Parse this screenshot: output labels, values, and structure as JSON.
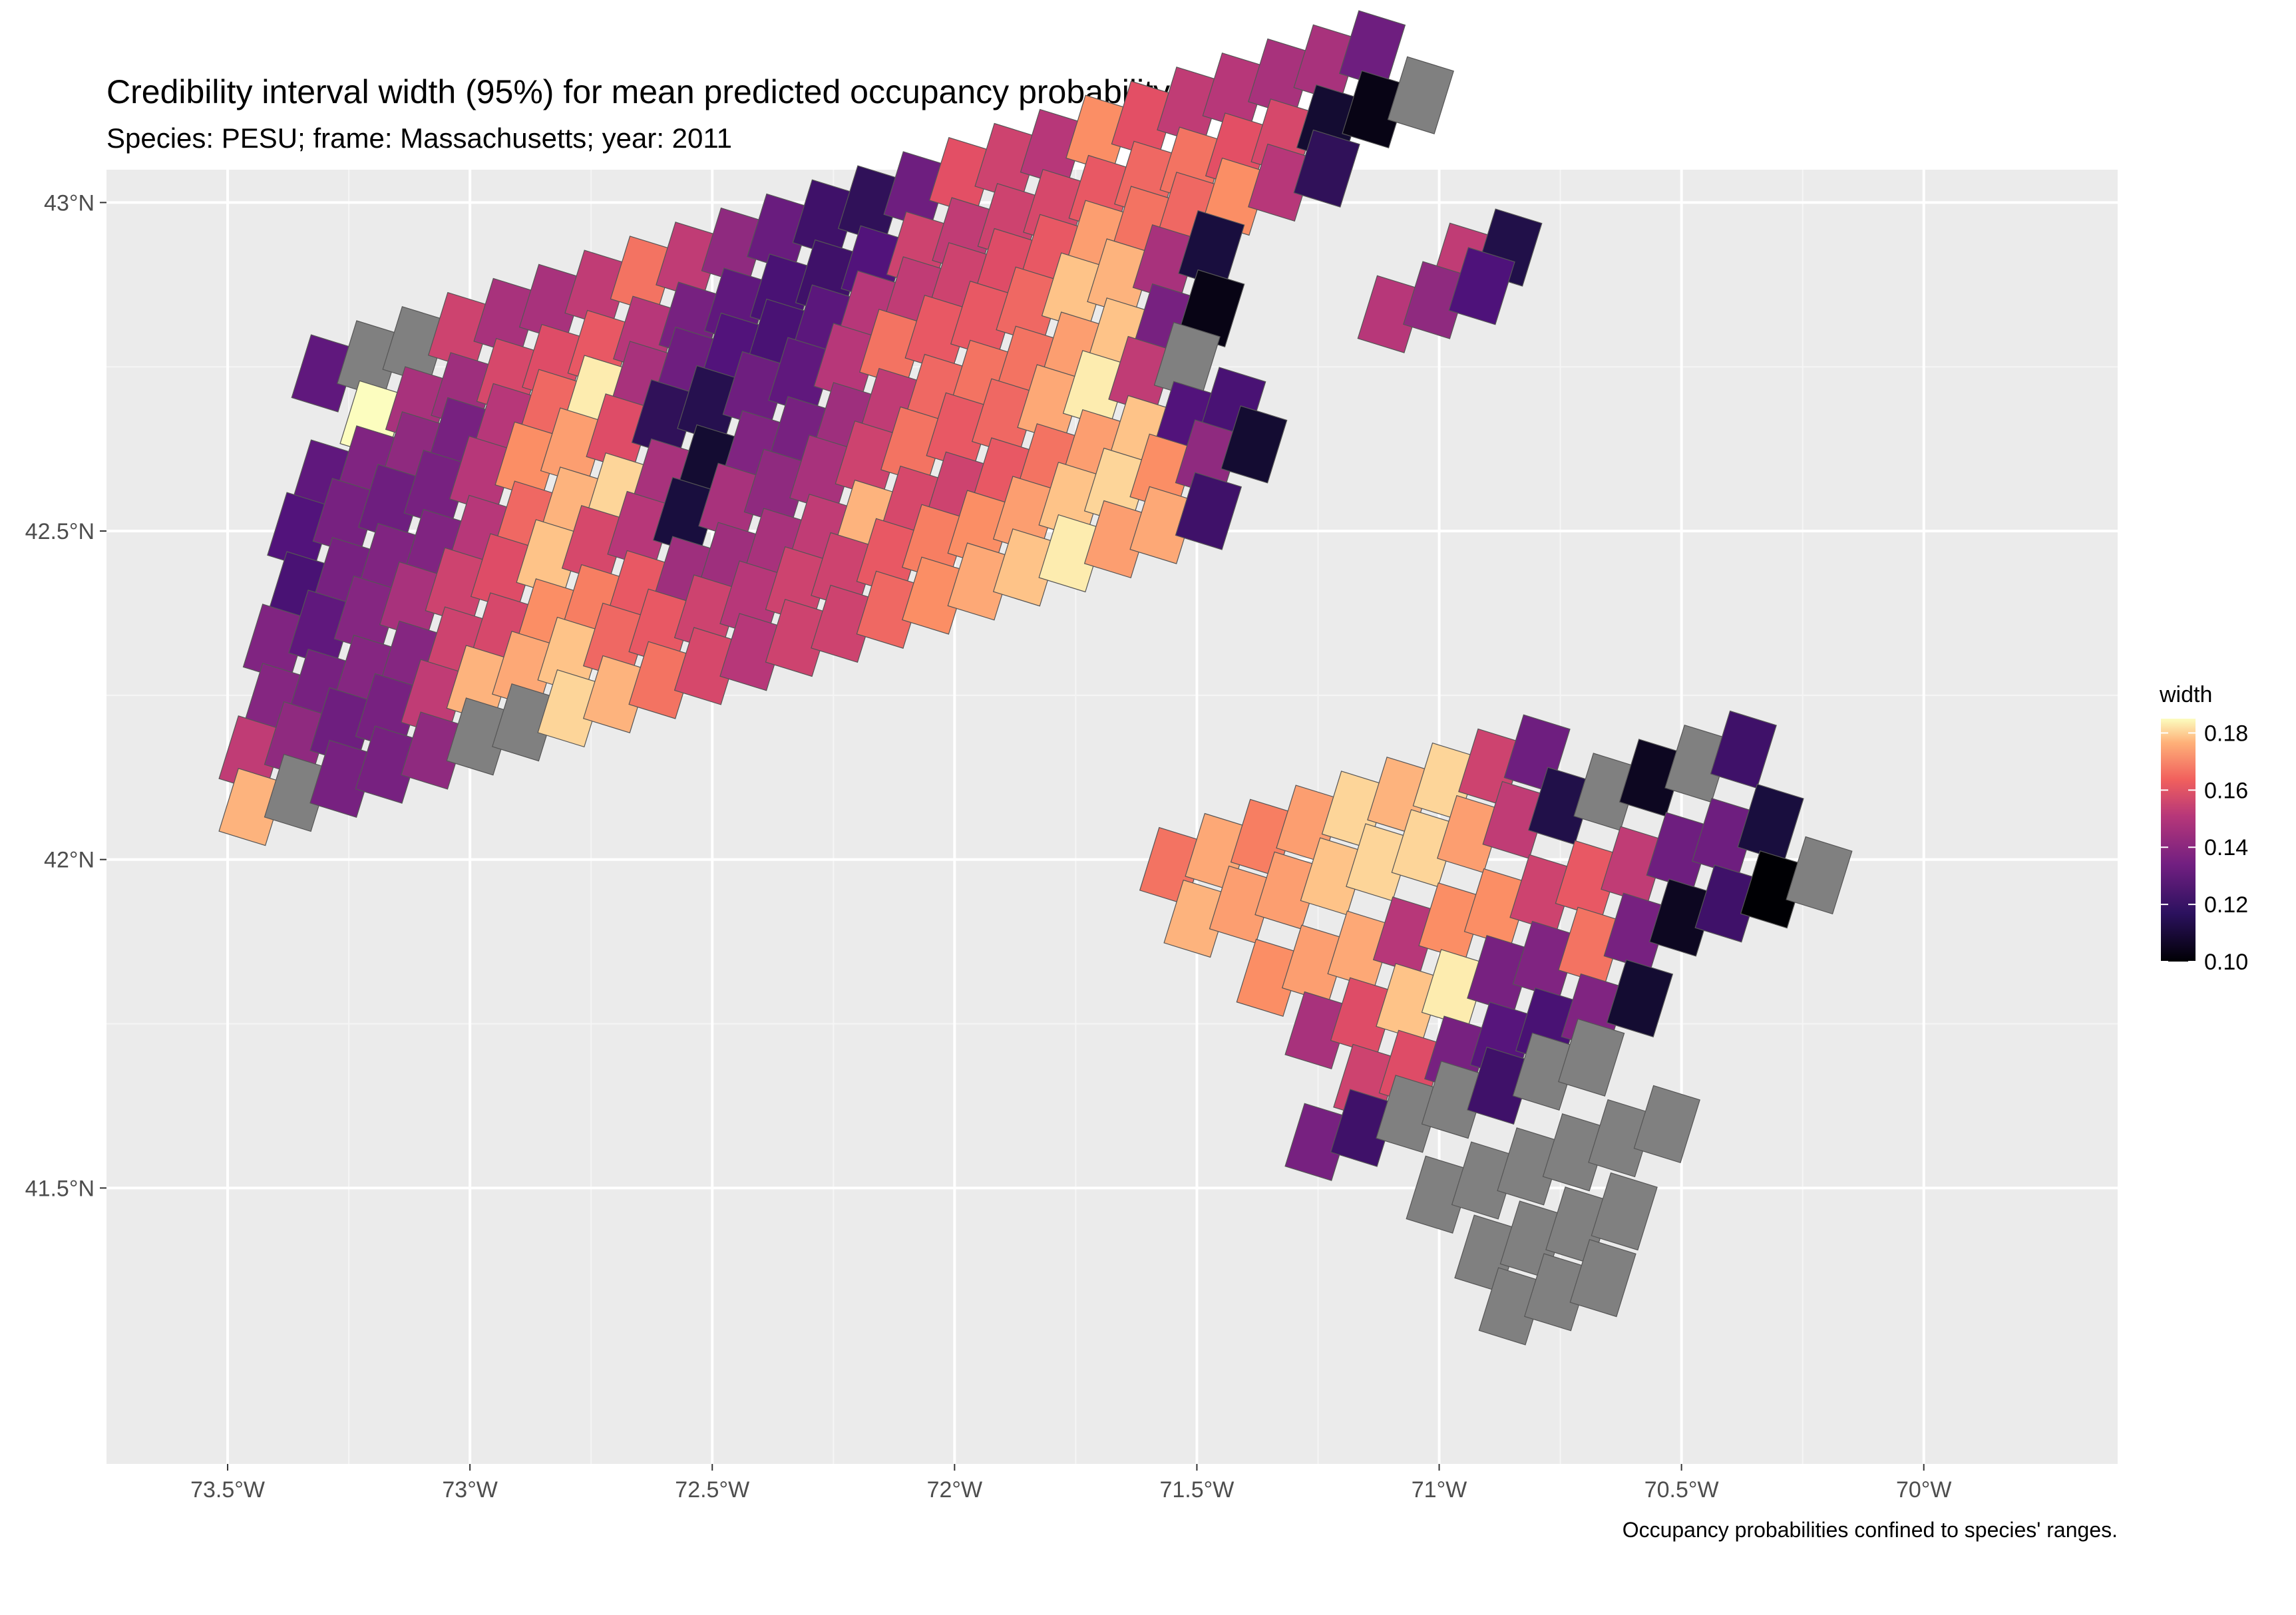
{
  "title": "Credibility interval width (95%) for mean predicted occupancy probability",
  "subtitle": "Species: PESU; frame: Massachusetts; year: 2011",
  "caption": "Occupancy probabilities confined to species' ranges.",
  "colors": {
    "panel_background": "#ebebeb",
    "grid": "#ffffff",
    "no_data_tile": "#808080",
    "tile_outline": "#555555",
    "palette": "magma"
  },
  "chart_data": {
    "type": "heatmap",
    "x_ticks": [
      "73.5°W",
      "73°W",
      "72.5°W",
      "72°W",
      "71.5°W",
      "71°W",
      "70.5°W",
      "70°W"
    ],
    "x_tick_values": [
      -73.5,
      -73.0,
      -72.5,
      -72.0,
      -71.5,
      -71.0,
      -70.5,
      -70.0
    ],
    "y_ticks": [
      "43°N",
      "42.5°N",
      "42°N",
      "41.5°N"
    ],
    "y_tick_values": [
      43.0,
      42.5,
      42.0,
      41.5
    ],
    "xlim": [
      -73.75,
      -69.6
    ],
    "ylim": [
      41.08,
      43.05
    ],
    "grid": true,
    "legend": {
      "title": "width",
      "position": "right",
      "range": [
        0.1,
        0.185
      ],
      "labels": [
        "0.18",
        "0.16",
        "0.14",
        "0.12",
        "0.10"
      ],
      "label_values": [
        0.18,
        0.16,
        0.14,
        0.12,
        0.1
      ]
    },
    "cell_size_deg": 0.1,
    "note": "Tiles listed by row (latitude of row, west-most longitude); values are widths, null = grey/no data",
    "rows": [
      {
        "lat": 42.91,
        "lon0": -71.0,
        "values": [
          0.145,
          0.112
        ]
      },
      {
        "lat": 42.83,
        "lon0": -71.15,
        "values": [
          0.143,
          0.135,
          0.121
        ]
      },
      {
        "lat": 42.74,
        "lon0": -73.35,
        "values": [
          0.125,
          null,
          null,
          0.148,
          0.14,
          0.14,
          0.145,
          0.16,
          0.145,
          0.135,
          0.127,
          0.118,
          0.115,
          0.128,
          0.153,
          0.148,
          0.143,
          0.165,
          0.153,
          0.145,
          0.143,
          0.14,
          0.14,
          0.128
        ]
      },
      {
        "lat": 42.67,
        "lon0": -73.25,
        "values": [
          0.185,
          0.14,
          0.138,
          0.15,
          0.152,
          0.155,
          0.143,
          0.13,
          0.125,
          0.12,
          0.118,
          0.122,
          0.148,
          0.145,
          0.148,
          0.15,
          0.155,
          0.158,
          0.16,
          0.153,
          0.15,
          0.108,
          0.103,
          null
        ]
      },
      {
        "lat": 42.58,
        "lon0": -73.35,
        "values": [
          0.125,
          0.132,
          0.135,
          0.13,
          0.143,
          0.158,
          0.182,
          0.14,
          0.128,
          0.122,
          0.12,
          0.124,
          0.143,
          0.145,
          0.148,
          0.152,
          0.155,
          0.168,
          0.16,
          0.158,
          0.165,
          0.143,
          0.115
        ]
      },
      {
        "lat": 42.5,
        "lon0": -73.4,
        "values": [
          0.122,
          0.13,
          0.128,
          0.13,
          0.143,
          0.165,
          0.168,
          0.152,
          0.115,
          0.113,
          0.128,
          0.125,
          0.143,
          0.16,
          0.155,
          0.155,
          0.158,
          0.175,
          0.172,
          0.14,
          0.11
        ]
      },
      {
        "lat": 42.41,
        "lon0": -73.4,
        "values": [
          0.12,
          0.13,
          0.132,
          0.132,
          0.143,
          0.158,
          0.172,
          0.178,
          0.14,
          0.108,
          0.132,
          0.13,
          0.138,
          0.145,
          0.158,
          0.16,
          0.16,
          0.168,
          0.175,
          0.13,
          0.103
        ]
      },
      {
        "lat": 42.33,
        "lon0": -73.45,
        "values": [
          0.132,
          0.125,
          0.133,
          0.14,
          0.148,
          0.152,
          0.175,
          0.15,
          0.143,
          0.11,
          0.14,
          0.135,
          0.14,
          0.148,
          0.16,
          0.155,
          0.158,
          0.17,
          0.182,
          0.145,
          null
        ]
      },
      {
        "lat": 42.24,
        "lon0": -73.45,
        "values": [
          0.133,
          0.13,
          0.133,
          0.133,
          0.148,
          0.15,
          0.165,
          0.162,
          0.155,
          0.138,
          0.138,
          0.14,
          0.145,
          0.172,
          0.15,
          0.148,
          0.155,
          0.16,
          0.168,
          0.175,
          0.122,
          0.12
        ]
      },
      {
        "lat": 42.16,
        "lon0": -73.5,
        "values": [
          0.145,
          0.135,
          0.128,
          0.13,
          0.145,
          0.172,
          0.17,
          0.175,
          0.158,
          0.155,
          0.148,
          0.143,
          0.148,
          0.148,
          0.155,
          0.162,
          0.165,
          0.168,
          0.175,
          0.178,
          0.165,
          0.135,
          0.108
        ]
      },
      {
        "lat": 42.08,
        "lon0": -73.5,
        "values": [
          0.172,
          null,
          0.13,
          0.13,
          0.135,
          null,
          null,
          0.178,
          0.172,
          0.16,
          0.15,
          0.143,
          0.148,
          0.148,
          0.158,
          0.165,
          0.17,
          0.175,
          0.182,
          0.168,
          0.17,
          0.118
        ]
      },
      {
        "lat": 41.99,
        "lon0": -71.6,
        "values": [
          0.16,
          0.17,
          0.162,
          0.168,
          0.178,
          0.172,
          0.178,
          0.148,
          0.128
        ]
      },
      {
        "lat": 41.91,
        "lon0": -71.55,
        "values": [
          0.172,
          0.168,
          0.168,
          0.175,
          0.178,
          0.178,
          0.168,
          0.145,
          0.112,
          null,
          0.105,
          null,
          0.118
        ]
      },
      {
        "lat": 41.82,
        "lon0": -71.4,
        "values": [
          0.165,
          0.168,
          0.17,
          0.143,
          0.165,
          0.165,
          0.148,
          0.155,
          0.145,
          0.128,
          0.128,
          0.11
        ]
      },
      {
        "lat": 41.74,
        "lon0": -71.3,
        "values": [
          0.14,
          0.152,
          0.175,
          0.182,
          0.13,
          0.132,
          0.16,
          0.13,
          0.105,
          0.118,
          0.098,
          null
        ]
      },
      {
        "lat": 41.66,
        "lon0": -71.2,
        "values": [
          0.148,
          0.152,
          0.13,
          0.123,
          0.12,
          0.132,
          0.108
        ]
      },
      {
        "lat": 41.57,
        "lon0": -71.3,
        "values": [
          0.13,
          0.118,
          null,
          null,
          0.118,
          null,
          null
        ]
      },
      {
        "lat": 41.49,
        "lon0": -71.05,
        "values": [
          null,
          null,
          null,
          null,
          null,
          null
        ]
      },
      {
        "lat": 41.4,
        "lon0": -70.95,
        "values": [
          null,
          null,
          null,
          null
        ]
      },
      {
        "lat": 41.32,
        "lon0": -70.9,
        "values": [
          null,
          null,
          null
        ]
      }
    ]
  }
}
